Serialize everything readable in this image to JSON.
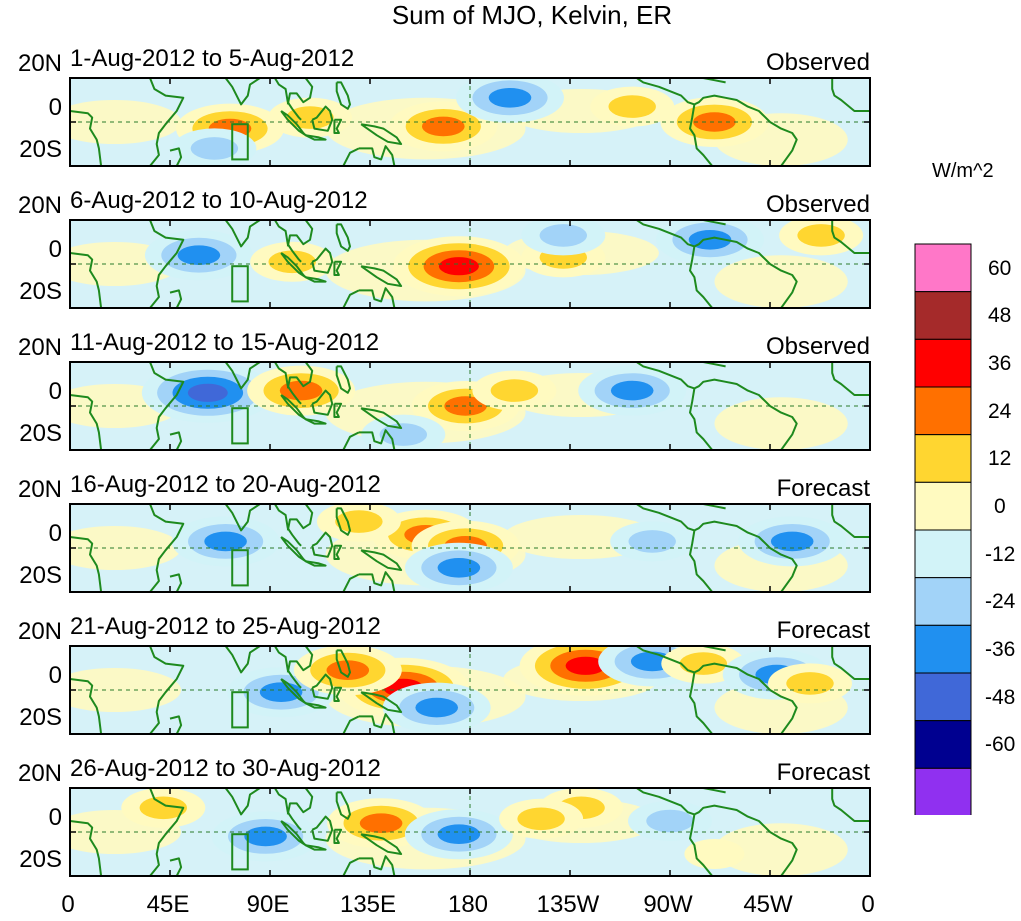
{
  "chart_data": {
    "type": "heatmap",
    "title": "Sum of MJO, Kelvin, ER",
    "units_label": "W/m^2",
    "y_tick_labels": [
      "20N",
      "0",
      "20S"
    ],
    "x_tick_labels": [
      "0",
      "45E",
      "90E",
      "135E",
      "180",
      "135W",
      "90W",
      "45W",
      "0"
    ],
    "colorbar": {
      "levels": [
        60,
        48,
        36,
        24,
        12,
        0,
        -12,
        -24,
        -36,
        -48,
        -60
      ],
      "colors": [
        "#ff77c8",
        "#a52a2a",
        "#ff0000",
        "#ff7000",
        "#ffd630",
        "#fffac0",
        "#d2f3f8",
        "#a2d3f8",
        "#2090f0",
        "#4068d8",
        "#000090",
        "#9030f0"
      ]
    },
    "panels": [
      {
        "dates": "1-Aug-2012 to 5-Aug-2012",
        "kind": "Observed",
        "anomalies": [
          {
            "lon": 72,
            "lat": -3,
            "value": 30
          },
          {
            "lon": 108,
            "lat": 2,
            "value": 20
          },
          {
            "lon": 168,
            "lat": -2,
            "value": 30
          },
          {
            "lon": 290,
            "lat": 0,
            "value": 28
          },
          {
            "lon": 253,
            "lat": 7,
            "value": 14
          },
          {
            "lon": 198,
            "lat": 11,
            "value": -30
          },
          {
            "lon": 65,
            "lat": -12,
            "value": -15
          }
        ]
      },
      {
        "dates": "6-Aug-2012 to 10-Aug-2012",
        "kind": "Observed",
        "anomalies": [
          {
            "lon": 58,
            "lat": 4,
            "value": -32
          },
          {
            "lon": 100,
            "lat": 1,
            "value": 14
          },
          {
            "lon": 175,
            "lat": -1,
            "value": 42
          },
          {
            "lon": 222,
            "lat": 3,
            "value": 14
          },
          {
            "lon": 222,
            "lat": 13,
            "value": -15
          },
          {
            "lon": 288,
            "lat": 11,
            "value": -28
          },
          {
            "lon": 338,
            "lat": 13,
            "value": 13
          }
        ]
      },
      {
        "dates": "11-Aug-2012 to 15-Aug-2012",
        "kind": "Observed",
        "anomalies": [
          {
            "lon": 62,
            "lat": 6,
            "value": -38
          },
          {
            "lon": 104,
            "lat": 7,
            "value": 30
          },
          {
            "lon": 178,
            "lat": 0,
            "value": 28
          },
          {
            "lon": 200,
            "lat": 7,
            "value": 14
          },
          {
            "lon": 253,
            "lat": 7,
            "value": -30
          },
          {
            "lon": 150,
            "lat": -13,
            "value": -16
          }
        ]
      },
      {
        "dates": "16-Aug-2012 to 20-Aug-2012",
        "kind": "Forecast",
        "anomalies": [
          {
            "lon": 70,
            "lat": 3,
            "value": -30
          },
          {
            "lon": 160,
            "lat": 6,
            "value": 30
          },
          {
            "lon": 178,
            "lat": 1,
            "value": 30
          },
          {
            "lon": 175,
            "lat": -9,
            "value": -28
          },
          {
            "lon": 130,
            "lat": 12,
            "value": 14
          },
          {
            "lon": 262,
            "lat": 3,
            "value": -15
          },
          {
            "lon": 325,
            "lat": 3,
            "value": -28
          }
        ]
      },
      {
        "dates": "21-Aug-2012 to 25-Aug-2012",
        "kind": "Forecast",
        "anomalies": [
          {
            "lon": 95,
            "lat": -1,
            "value": -34
          },
          {
            "lon": 150,
            "lat": 1,
            "value": 40
          },
          {
            "lon": 125,
            "lat": 9,
            "value": 26
          },
          {
            "lon": 165,
            "lat": -8,
            "value": -28
          },
          {
            "lon": 232,
            "lat": 11,
            "value": 38
          },
          {
            "lon": 262,
            "lat": 13,
            "value": -34
          },
          {
            "lon": 285,
            "lat": 12,
            "value": 22
          },
          {
            "lon": 318,
            "lat": 7,
            "value": -28
          },
          {
            "lon": 333,
            "lat": 3,
            "value": 14
          }
        ]
      },
      {
        "dates": "26-Aug-2012 to 30-Aug-2012",
        "kind": "Forecast",
        "anomalies": [
          {
            "lon": 88,
            "lat": -2,
            "value": -30
          },
          {
            "lon": 140,
            "lat": 4,
            "value": 34
          },
          {
            "lon": 175,
            "lat": -1,
            "value": -32
          },
          {
            "lon": 230,
            "lat": 11,
            "value": 22
          },
          {
            "lon": 212,
            "lat": 6,
            "value": 14
          },
          {
            "lon": 42,
            "lat": 11,
            "value": 14
          },
          {
            "lon": 290,
            "lat": -10,
            "value": 12
          },
          {
            "lon": 270,
            "lat": 5,
            "value": -13
          }
        ]
      }
    ]
  }
}
